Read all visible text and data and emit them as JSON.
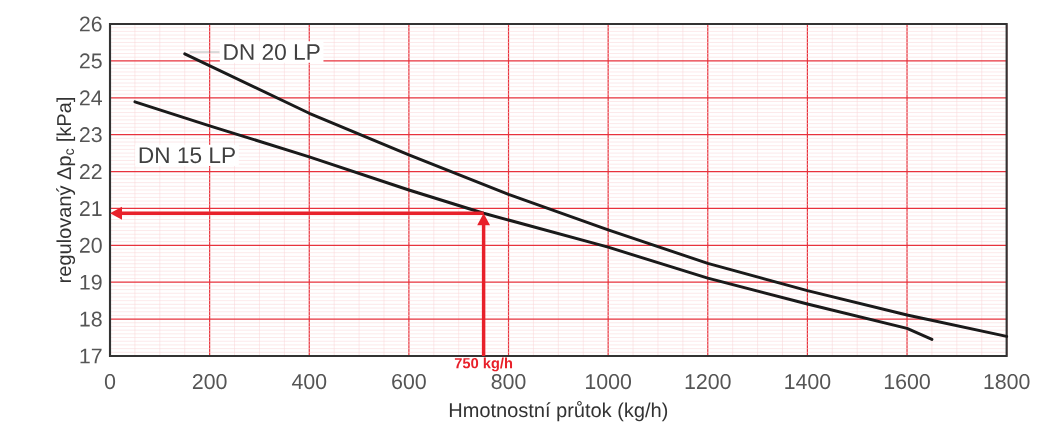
{
  "chart_data": {
    "type": "line",
    "xlabel": "Hmotnostní průtok (kg/h)",
    "ylabel": "regulovaný   Δp$_{c}$ [kPa]",
    "xlim": [
      0,
      1800
    ],
    "ylim": [
      17,
      26
    ],
    "xticks": [
      0,
      200,
      400,
      600,
      800,
      1000,
      1200,
      1400,
      1600,
      1800
    ],
    "yticks": [
      17,
      18,
      19,
      20,
      21,
      22,
      23,
      24,
      25,
      26
    ],
    "grid": true,
    "legend": false,
    "marker": "none",
    "line_style": "solid",
    "series": [
      {
        "name": "DN 20 LP",
        "color": "#1a1a1a",
        "x": [
          150,
          400,
          600,
          800,
          1000,
          1200,
          1400,
          1600,
          1800
        ],
        "values": [
          25.19,
          23.58,
          22.45,
          21.38,
          20.42,
          19.51,
          18.77,
          18.11,
          17.53
        ]
      },
      {
        "name": "DN 15 LP",
        "color": "#1a1a1a",
        "x": [
          50,
          200,
          400,
          600,
          750,
          1000,
          1200,
          1400,
          1600,
          1650
        ],
        "values": [
          23.89,
          23.24,
          22.4,
          21.5,
          20.87,
          19.95,
          19.11,
          18.41,
          17.75,
          17.45
        ]
      }
    ],
    "ref_lines": [
      {
        "axis": "x",
        "value": 750,
        "label": "750 kg/h"
      },
      {
        "axis": "y",
        "value": 20.87
      }
    ]
  }
}
